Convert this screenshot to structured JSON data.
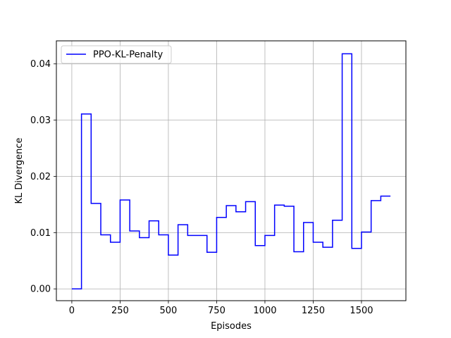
{
  "chart_data": {
    "type": "line",
    "title": "",
    "xlabel": "Episodes",
    "ylabel": "KL Divergence",
    "xlim": [
      -80,
      1730
    ],
    "ylim": [
      -0.0021,
      0.0441
    ],
    "xticks": [
      0,
      250,
      500,
      750,
      1000,
      1250,
      1500
    ],
    "xtick_labels": [
      "0",
      "250",
      "500",
      "750",
      "1000",
      "1250",
      "1500"
    ],
    "yticks": [
      0.0,
      0.01,
      0.02,
      0.03,
      0.04
    ],
    "ytick_labels": [
      "0.00",
      "0.01",
      "0.02",
      "0.03",
      "0.04"
    ],
    "grid": true,
    "legend_position": "top-left",
    "series": [
      {
        "name": "PPO-KL-Penalty",
        "color": "#0000ff",
        "step": "post",
        "x": [
          0,
          50,
          100,
          150,
          200,
          250,
          300,
          350,
          400,
          450,
          500,
          550,
          600,
          650,
          700,
          750,
          800,
          850,
          900,
          950,
          1000,
          1050,
          1100,
          1150,
          1200,
          1250,
          1300,
          1350,
          1400,
          1450,
          1500,
          1550,
          1600,
          1650
        ],
        "values": [
          0.0,
          0.0311,
          0.0152,
          0.0096,
          0.0083,
          0.0158,
          0.0103,
          0.0091,
          0.0121,
          0.0096,
          0.006,
          0.0114,
          0.0095,
          0.0095,
          0.0065,
          0.0127,
          0.0148,
          0.0137,
          0.0155,
          0.0077,
          0.0095,
          0.0149,
          0.0147,
          0.0066,
          0.0118,
          0.0083,
          0.0074,
          0.0122,
          0.0418,
          0.0072,
          0.0101,
          0.0157,
          0.0165,
          0.0165
        ]
      }
    ]
  }
}
